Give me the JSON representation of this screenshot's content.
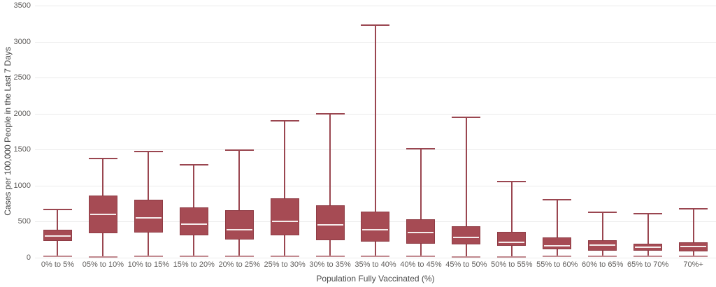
{
  "chart_data": {
    "type": "boxplot",
    "title": "",
    "xlabel": "Population Fully Vaccinated (%)",
    "ylabel": "Cases per 100,000 People in the Last 7 Days",
    "ylim": [
      0,
      3500
    ],
    "y_ticks": [
      0,
      500,
      1000,
      1500,
      2000,
      2500,
      3000,
      3500
    ],
    "grid": "horizontal",
    "legend": "none",
    "boxes": [
      {
        "label": "0% to 5%",
        "whisker_low": 15,
        "q1": 235,
        "median": 305,
        "q3": 390,
        "whisker_high": 670
      },
      {
        "label": "05% to 10%",
        "whisker_low": 10,
        "q1": 335,
        "median": 600,
        "q3": 860,
        "whisker_high": 1380
      },
      {
        "label": "10% to 15%",
        "whisker_low": 15,
        "q1": 345,
        "median": 555,
        "q3": 805,
        "whisker_high": 1470
      },
      {
        "label": "15% to 20%",
        "whisker_low": 15,
        "q1": 315,
        "median": 470,
        "q3": 700,
        "whisker_high": 1290
      },
      {
        "label": "20% to 25%",
        "whisker_low": 15,
        "q1": 250,
        "median": 390,
        "q3": 660,
        "whisker_high": 1490
      },
      {
        "label": "25% to 30%",
        "whisker_low": 15,
        "q1": 315,
        "median": 505,
        "q3": 820,
        "whisker_high": 1900
      },
      {
        "label": "30% to 35%",
        "whisker_low": 15,
        "q1": 240,
        "median": 460,
        "q3": 725,
        "whisker_high": 2000
      },
      {
        "label": "35% to 40%",
        "whisker_low": 15,
        "q1": 220,
        "median": 390,
        "q3": 640,
        "whisker_high": 3230
      },
      {
        "label": "40% to 45%",
        "whisker_low": 15,
        "q1": 190,
        "median": 345,
        "q3": 535,
        "whisker_high": 1510
      },
      {
        "label": "45% to 50%",
        "whisker_low": 10,
        "q1": 180,
        "median": 280,
        "q3": 440,
        "whisker_high": 1950
      },
      {
        "label": "50% to 55%",
        "whisker_low": 10,
        "q1": 165,
        "median": 210,
        "q3": 355,
        "whisker_high": 1060
      },
      {
        "label": "55% to 60%",
        "whisker_low": 15,
        "q1": 115,
        "median": 165,
        "q3": 285,
        "whisker_high": 805
      },
      {
        "label": "60% to 65%",
        "whisker_low": 15,
        "q1": 95,
        "median": 170,
        "q3": 240,
        "whisker_high": 630
      },
      {
        "label": "65% to 70%",
        "whisker_low": 15,
        "q1": 95,
        "median": 145,
        "q3": 190,
        "whisker_high": 610
      },
      {
        "label": "70%+",
        "whisker_low": 15,
        "q1": 85,
        "median": 155,
        "q3": 210,
        "whisker_high": 680
      }
    ],
    "colors": {
      "box_fill": "#A64B54",
      "box_border": "#8F3C45",
      "whisker": "#9A4650",
      "whisker_cap_bottom": "#C28A90",
      "median": "#F5ECEC",
      "gridline": "#EBEBEB",
      "background": "#FFFFFF"
    }
  }
}
